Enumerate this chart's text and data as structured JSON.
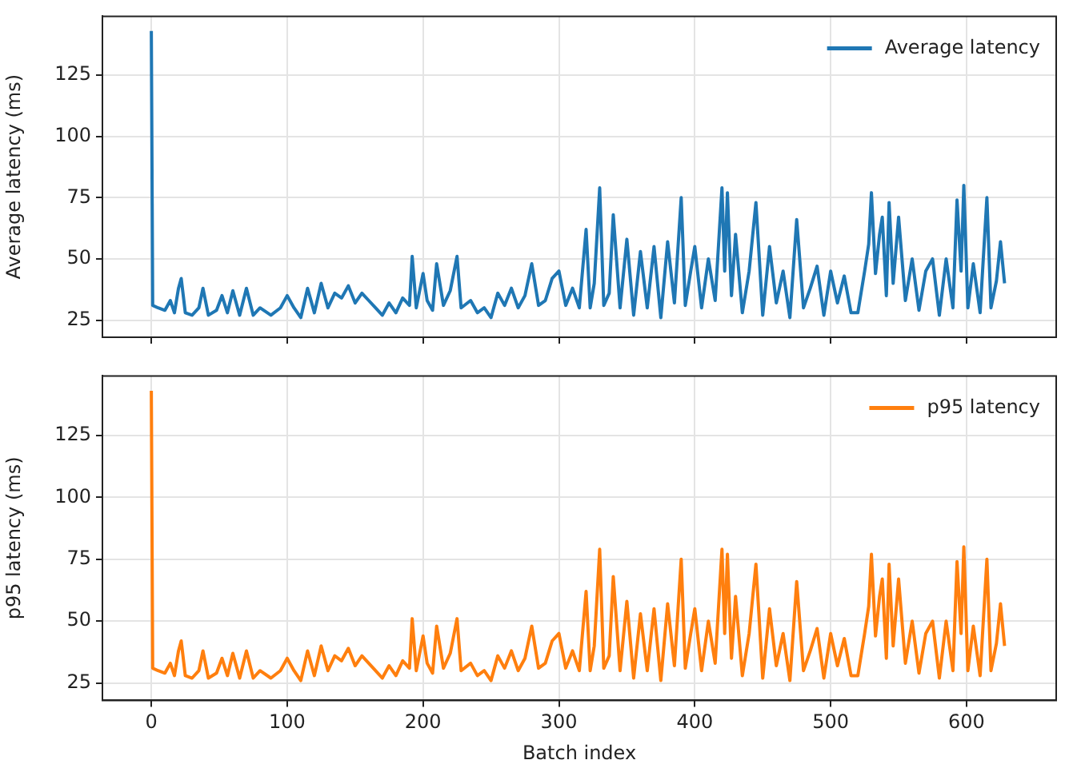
{
  "chart_data": [
    {
      "type": "line",
      "ylabel": "Average latency (ms)",
      "xlim": [
        -36,
        666
      ],
      "xticks": [
        0,
        100,
        200,
        300,
        400,
        500,
        600
      ],
      "ylim": [
        18,
        149
      ],
      "yticks": [
        25,
        50,
        75,
        100,
        125
      ],
      "grid": true,
      "legend": "top right",
      "tick_labels": "y",
      "x": [
        0,
        1,
        5,
        10,
        14,
        17,
        20,
        22,
        25,
        30,
        35,
        38,
        42,
        48,
        52,
        56,
        60,
        65,
        70,
        75,
        80,
        88,
        95,
        100,
        105,
        110,
        115,
        120,
        125,
        130,
        135,
        140,
        145,
        150,
        155,
        160,
        165,
        170,
        175,
        180,
        185,
        190,
        192,
        195,
        200,
        203,
        207,
        210,
        215,
        220,
        225,
        228,
        235,
        240,
        245,
        250,
        255,
        260,
        265,
        270,
        275,
        280,
        285,
        290,
        295,
        300,
        305,
        310,
        315,
        320,
        323,
        326,
        330,
        333,
        337,
        340,
        345,
        350,
        355,
        360,
        365,
        370,
        375,
        380,
        385,
        390,
        393,
        397,
        400,
        405,
        410,
        415,
        420,
        422,
        424,
        427,
        430,
        435,
        440,
        445,
        450,
        455,
        460,
        465,
        470,
        475,
        480,
        485,
        490,
        495,
        500,
        505,
        510,
        515,
        520,
        525,
        528,
        530,
        533,
        536,
        538,
        541,
        543,
        546,
        550,
        555,
        560,
        565,
        570,
        575,
        580,
        585,
        590,
        593,
        596,
        598,
        601,
        605,
        610,
        615,
        618,
        622,
        625,
        628
      ],
      "series": [
        {
          "name": "Average latency",
          "color": "#1f77b4",
          "values": [
            143,
            31,
            30,
            29,
            33,
            28,
            38,
            42,
            28,
            27,
            30,
            38,
            27,
            29,
            35,
            28,
            37,
            27,
            38,
            27,
            30,
            27,
            30,
            35,
            30,
            26,
            38,
            28,
            40,
            30,
            36,
            34,
            39,
            32,
            36,
            33,
            30,
            27,
            32,
            28,
            34,
            31,
            51,
            30,
            44,
            33,
            29,
            48,
            31,
            37,
            51,
            30,
            33,
            28,
            30,
            26,
            36,
            31,
            38,
            30,
            35,
            48,
            31,
            33,
            42,
            45,
            31,
            38,
            30,
            62,
            30,
            40,
            79,
            31,
            36,
            68,
            30,
            58,
            27,
            53,
            30,
            55,
            26,
            57,
            32,
            75,
            31,
            45,
            55,
            30,
            50,
            33,
            79,
            45,
            77,
            35,
            60,
            28,
            45,
            73,
            27,
            55,
            32,
            45,
            26,
            66,
            30,
            38,
            47,
            27,
            45,
            32,
            43,
            28,
            28,
            45,
            56,
            77,
            44,
            60,
            67,
            35,
            73,
            40,
            67,
            33,
            50,
            29,
            45,
            50,
            27,
            50,
            30,
            74,
            45,
            80,
            30,
            48,
            28,
            75,
            30,
            41,
            57,
            40
          ]
        }
      ]
    },
    {
      "type": "line",
      "ylabel": "p95 latency (ms)",
      "xlabel": "Batch index",
      "xlim": [
        -36,
        666
      ],
      "xticks": [
        0,
        100,
        200,
        300,
        400,
        500,
        600
      ],
      "ylim": [
        18,
        149
      ],
      "yticks": [
        25,
        50,
        75,
        100,
        125
      ],
      "grid": true,
      "legend": "top right",
      "x": [
        0,
        1,
        5,
        10,
        14,
        17,
        20,
        22,
        25,
        30,
        35,
        38,
        42,
        48,
        52,
        56,
        60,
        65,
        70,
        75,
        80,
        88,
        95,
        100,
        105,
        110,
        115,
        120,
        125,
        130,
        135,
        140,
        145,
        150,
        155,
        160,
        165,
        170,
        175,
        180,
        185,
        190,
        192,
        195,
        200,
        203,
        207,
        210,
        215,
        220,
        225,
        228,
        235,
        240,
        245,
        250,
        255,
        260,
        265,
        270,
        275,
        280,
        285,
        290,
        295,
        300,
        305,
        310,
        315,
        320,
        323,
        326,
        330,
        333,
        337,
        340,
        345,
        350,
        355,
        360,
        365,
        370,
        375,
        380,
        385,
        390,
        393,
        397,
        400,
        405,
        410,
        415,
        420,
        422,
        424,
        427,
        430,
        435,
        440,
        445,
        450,
        455,
        460,
        465,
        470,
        475,
        480,
        485,
        490,
        495,
        500,
        505,
        510,
        515,
        520,
        525,
        528,
        530,
        533,
        536,
        538,
        541,
        543,
        546,
        550,
        555,
        560,
        565,
        570,
        575,
        580,
        585,
        590,
        593,
        596,
        598,
        601,
        605,
        610,
        615,
        618,
        622,
        625,
        628
      ],
      "series": [
        {
          "name": "p95 latency",
          "color": "#ff7f0e",
          "values": [
            143,
            31,
            30,
            29,
            33,
            28,
            38,
            42,
            28,
            27,
            30,
            38,
            27,
            29,
            35,
            28,
            37,
            27,
            38,
            27,
            30,
            27,
            30,
            35,
            30,
            26,
            38,
            28,
            40,
            30,
            36,
            34,
            39,
            32,
            36,
            33,
            30,
            27,
            32,
            28,
            34,
            31,
            51,
            30,
            44,
            33,
            29,
            48,
            31,
            37,
            51,
            30,
            33,
            28,
            30,
            26,
            36,
            31,
            38,
            30,
            35,
            48,
            31,
            33,
            42,
            45,
            31,
            38,
            30,
            62,
            30,
            40,
            79,
            31,
            36,
            68,
            30,
            58,
            27,
            53,
            30,
            55,
            26,
            57,
            32,
            75,
            31,
            45,
            55,
            30,
            50,
            33,
            79,
            45,
            77,
            35,
            60,
            28,
            45,
            73,
            27,
            55,
            32,
            45,
            26,
            66,
            30,
            38,
            47,
            27,
            45,
            32,
            43,
            28,
            28,
            45,
            56,
            77,
            44,
            60,
            67,
            35,
            73,
            40,
            67,
            33,
            50,
            29,
            45,
            50,
            27,
            50,
            30,
            74,
            45,
            80,
            30,
            48,
            28,
            75,
            30,
            41,
            57,
            40
          ]
        }
      ]
    }
  ]
}
